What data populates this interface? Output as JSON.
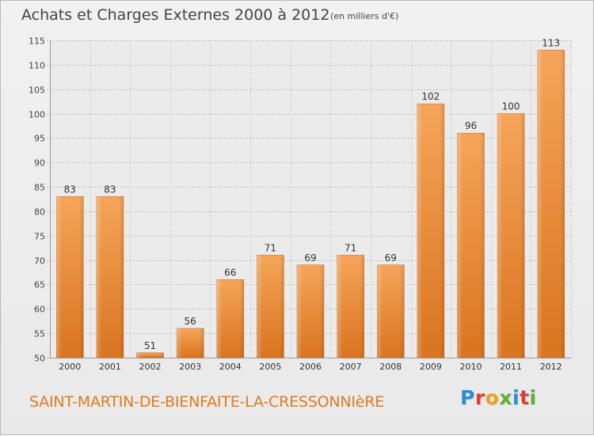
{
  "title": "Achats et Charges Externes 2000 à 2012",
  "unit": "(en milliers d'€)",
  "commune": "SAINT-MARTIN-DE-BIENFAITE-LA-CRESSONNIèRE",
  "logo": {
    "text": "Proxiti",
    "letters": [
      "P",
      "r",
      "o",
      "x",
      "i",
      "t",
      "i"
    ],
    "colors": [
      "#2a8ed0",
      "#e33b2f",
      "#f0a21b",
      "#58b13a",
      "#2a8ed0",
      "#e33b2f",
      "#58b13a"
    ]
  },
  "chart_data": {
    "type": "bar",
    "categories": [
      "2000",
      "2001",
      "2002",
      "2003",
      "2004",
      "2005",
      "2006",
      "2007",
      "2008",
      "2009",
      "2010",
      "2011",
      "2012"
    ],
    "values": [
      83,
      83,
      51,
      56,
      66,
      71,
      69,
      71,
      69,
      102,
      96,
      100,
      113
    ],
    "ylim": [
      50,
      115
    ],
    "yticks": [
      50,
      55,
      60,
      65,
      70,
      75,
      80,
      85,
      90,
      95,
      100,
      105,
      110,
      115
    ],
    "grid": true,
    "bar_color": "#f0913a"
  }
}
